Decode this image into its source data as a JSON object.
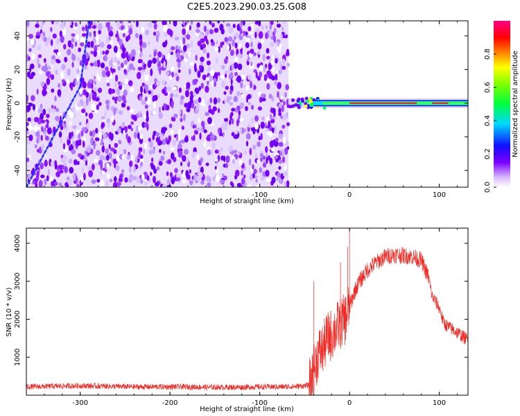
{
  "figure": {
    "title": "C2E5.2023.290.03.25.G08"
  },
  "colors": {
    "snr_line": "#ee2a24",
    "spectrogram_noise": "#7a00ff",
    "axis": "#000000"
  },
  "chart_data": [
    {
      "type": "heatmap",
      "xlabel": "Height of straight line (km)",
      "ylabel": "Frequency (Hz)",
      "xlim": [
        -360,
        132
      ],
      "ylim": [
        -50,
        49
      ],
      "xticks": [
        -300,
        -200,
        -100,
        0,
        100
      ],
      "yticks": [
        -40,
        -20,
        0,
        20,
        40
      ],
      "colorbar": {
        "label": "Normalized spectral amplitude",
        "range": [
          0.0,
          1.0
        ],
        "ticks": [
          "0.0",
          "0.2",
          "0.4",
          "0.6",
          "0.8"
        ],
        "colormap": "white-purple-blue-cyan-green-yellow-orange-red-pink"
      },
      "features": {
        "noise_region_x": [
          -360,
          -68
        ],
        "noise_amplitude": 0.25,
        "signal_line_frequency_hz": 0,
        "signal_region_x": [
          -68,
          132
        ],
        "signal_peak_amplitude": 0.9,
        "faint_doppler_trace": [
          [
            -360,
            -50
          ],
          [
            -300,
            10
          ],
          [
            -290,
            49
          ]
        ]
      }
    },
    {
      "type": "line",
      "xlabel": "Height of straight line (km)",
      "ylabel": "SNR (10 * v/v)",
      "xlim": [
        -360,
        132
      ],
      "ylim": [
        0,
        4400
      ],
      "xticks": [
        -300,
        -200,
        -100,
        0,
        100
      ],
      "yticks": [
        1000,
        2000,
        3000,
        4000
      ],
      "series": [
        {
          "color": "#ee2a24",
          "x": [
            -360,
            -340,
            -320,
            -300,
            -280,
            -260,
            -240,
            -220,
            -200,
            -180,
            -160,
            -140,
            -120,
            -100,
            -80,
            -60,
            -45,
            -40,
            -35,
            -30,
            -25,
            -20,
            -15,
            -10,
            -5,
            0,
            5,
            10,
            20,
            30,
            40,
            50,
            60,
            70,
            80,
            88,
            92,
            95,
            100,
            105,
            110,
            120,
            132
          ],
          "y": [
            220,
            230,
            240,
            250,
            240,
            230,
            220,
            220,
            220,
            220,
            210,
            210,
            210,
            220,
            220,
            230,
            260,
            600,
            1100,
            1200,
            1500,
            1600,
            1750,
            1900,
            2000,
            2300,
            2700,
            2950,
            3300,
            3500,
            3650,
            3700,
            3680,
            3650,
            3550,
            3100,
            2600,
            2500,
            2300,
            1900,
            1800,
            1650,
            1450
          ]
        }
      ],
      "spikes": [
        [
          -40,
          3000
        ],
        [
          -10,
          3500
        ],
        [
          0,
          4350
        ],
        [
          -2,
          3900
        ]
      ]
    }
  ]
}
